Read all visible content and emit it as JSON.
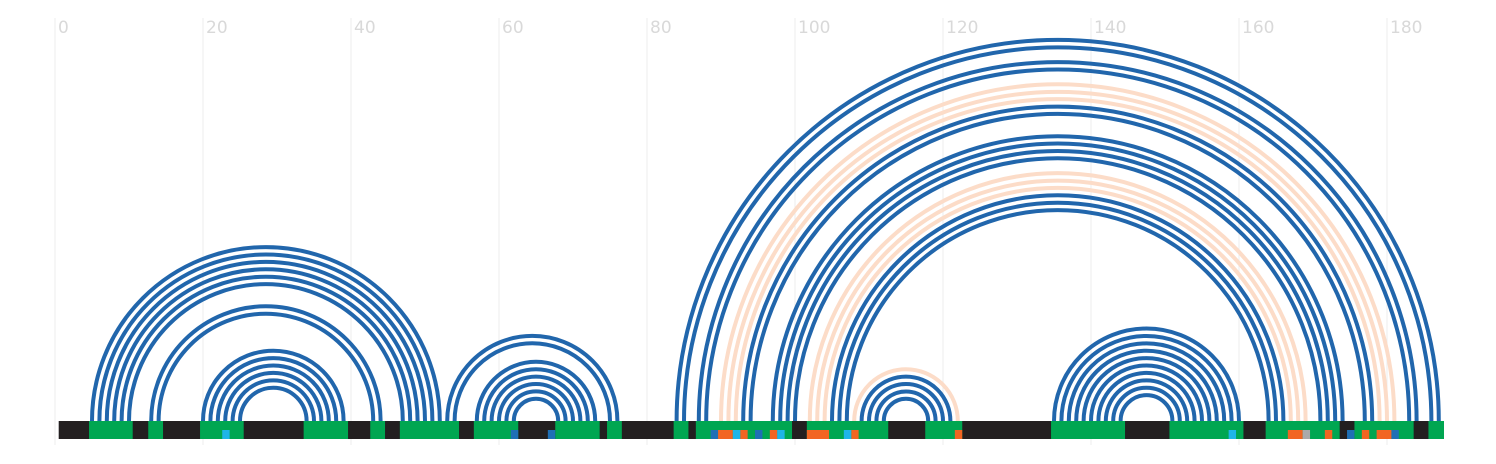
{
  "chart_data": {
    "type": "arc",
    "xlim": [
      0,
      190
    ],
    "xticks": [
      0,
      20,
      40,
      60,
      80,
      100,
      120,
      140,
      160,
      180
    ],
    "grid": true,
    "backbone": {
      "color": "#231f20",
      "start": 0.5,
      "end": 187.7
    },
    "arcs": [
      {
        "color": "#2166ac",
        "start": [
          5,
          6,
          7,
          8,
          9,
          10,
          13,
          14,
          20,
          21,
          22,
          23,
          24,
          25,
          53,
          54,
          57,
          58,
          59,
          60,
          61,
          62,
          84,
          85,
          87,
          88,
          93,
          94,
          97,
          98,
          99,
          100,
          105,
          106,
          107,
          109,
          110,
          111,
          112,
          135,
          136,
          137,
          138,
          139,
          140,
          141,
          142,
          143,
          144
        ],
        "end": [
          52,
          51,
          50,
          49,
          48,
          47,
          44,
          43,
          39,
          38,
          37,
          36,
          35,
          34,
          76,
          75,
          73,
          72,
          71,
          70,
          69,
          68,
          187,
          186,
          184,
          183,
          178,
          177,
          174,
          173,
          172,
          171,
          166,
          165,
          164,
          121,
          120,
          119,
          118,
          160,
          159,
          158,
          157,
          156,
          155,
          154,
          153,
          152,
          151
        ]
      },
      {
        "color": "#fcdcc8",
        "start": [
          90,
          91,
          92,
          102,
          103,
          104,
          108
        ],
        "end": [
          181,
          180,
          179,
          169,
          168,
          167,
          122
        ]
      }
    ],
    "tracks": [
      {
        "color": "#00a651",
        "start": [
          4.6,
          12.6,
          19.6,
          33.6,
          42.6,
          46.6,
          56.6,
          67.6,
          74.6,
          83.6,
          86.6,
          101.6,
          117.6,
          134.6,
          150.6,
          163.6,
          175.6,
          185.6
        ],
        "end": [
          10.5,
          14.6,
          25.5,
          39.6,
          44.6,
          54.6,
          62.6,
          73.6,
          76.6,
          85.6,
          99.6,
          112.6,
          122.6,
          144.6,
          160.6,
          173.6,
          183.6,
          187.7
        ]
      },
      {
        "color": "#f26522",
        "start": [
          89.6,
          92.6,
          96.6,
          101.6,
          107.6,
          121.6,
          166.6,
          171.6,
          176.6,
          178.6
        ],
        "end": [
          91.6,
          93.6,
          97.6,
          104.6,
          108.6,
          122.6,
          168.6,
          172.6,
          177.6,
          180.6
        ]
      },
      {
        "color": "#1fb5e8",
        "start": [
          22.6,
          91.6,
          97.6,
          106.6,
          158.6
        ],
        "end": [
          23.6,
          92.6,
          98.6,
          107.6,
          159.6
        ]
      },
      {
        "color": "#1f6fb5",
        "start": [
          61.6,
          66.6,
          88.6,
          94.6,
          174.6,
          180.6
        ],
        "end": [
          62.6,
          67.6,
          89.6,
          95.6,
          175.6,
          181.6
        ]
      },
      {
        "color": "#aaaaaa",
        "start": [
          168.6
        ],
        "end": [
          169.6
        ]
      }
    ]
  }
}
